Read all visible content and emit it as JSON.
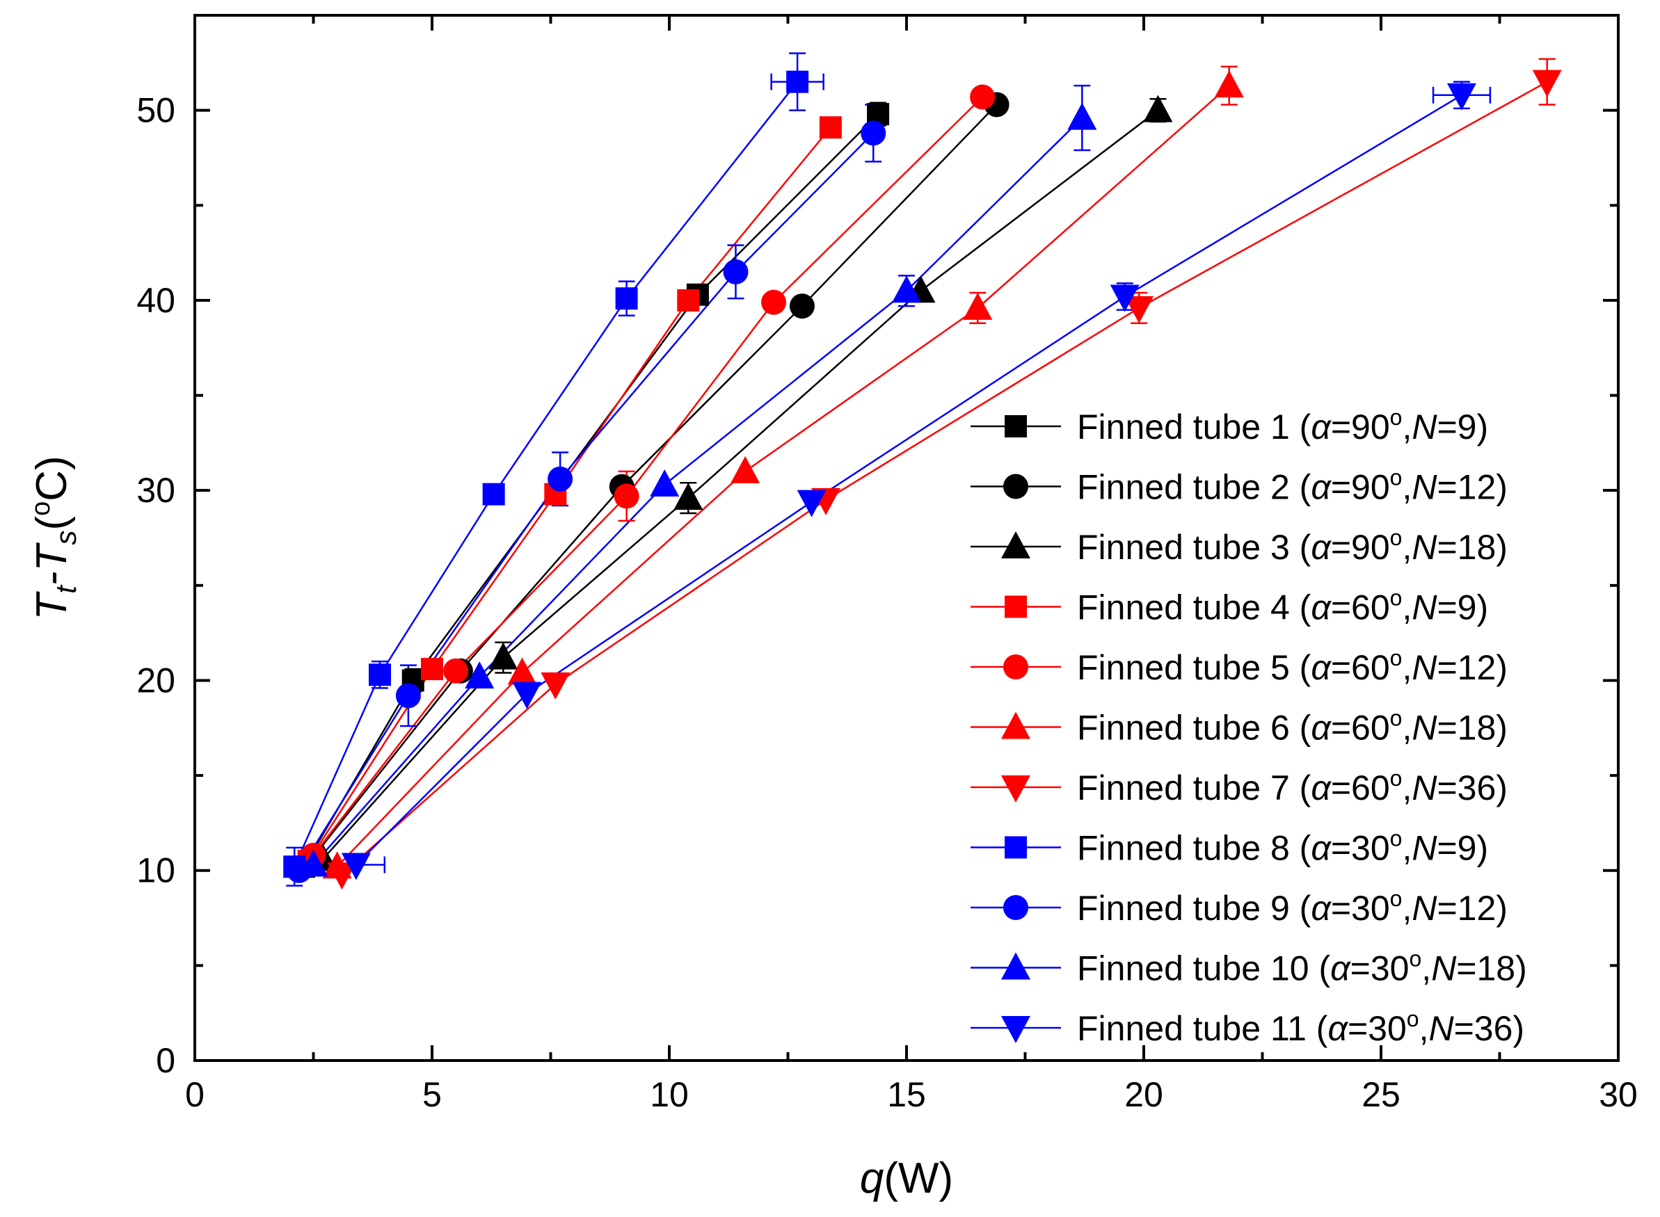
{
  "chart_data": {
    "type": "line",
    "xlabel": {
      "italic": "q",
      "rest": "(W)"
    },
    "ylabel": {
      "main": "T",
      "sub1": "t",
      "dash": "-T",
      "sub2": "s",
      "open": "(",
      "deg": "o",
      "close": "C)"
    },
    "xlim": [
      0,
      30
    ],
    "ylim": [
      0,
      55
    ],
    "xticks": [
      "0",
      "5",
      "10",
      "15",
      "20",
      "25",
      "30"
    ],
    "yticks": [
      "0",
      "10",
      "20",
      "30",
      "40",
      "50"
    ],
    "legend_position": "right",
    "series": [
      {
        "name": "Finned tube 1",
        "label": {
          "prefix": "Finned tube 1 (",
          "alpha_sym": "α",
          "alpha_val": "=90",
          "deg": "o",
          "sep": ",",
          "n_sym": "N",
          "n_val": "=9)"
        },
        "color": "#000000",
        "marker": "square",
        "x": [
          2.3,
          4.6,
          10.6,
          14.4
        ],
        "y": [
          10.2,
          20.0,
          40.3,
          49.8
        ]
      },
      {
        "name": "Finned tube 2",
        "label": {
          "prefix": "Finned tube 2 (",
          "alpha_sym": "α",
          "alpha_val": "=90",
          "deg": "o",
          "sep": ",",
          "n_sym": "N",
          "n_val": "=12)"
        },
        "color": "#000000",
        "marker": "circle",
        "x": [
          2.4,
          5.6,
          9.0,
          12.8,
          16.9
        ],
        "y": [
          10.4,
          20.5,
          30.2,
          39.7,
          50.3
        ]
      },
      {
        "name": "Finned tube 3",
        "label": {
          "prefix": "Finned tube 3 (",
          "alpha_sym": "α",
          "alpha_val": "=90",
          "deg": "o",
          "sep": ",",
          "n_sym": "N",
          "n_val": "=18)"
        },
        "color": "#000000",
        "marker": "triangle-up",
        "x": [
          2.7,
          6.5,
          10.4,
          15.3,
          20.3
        ],
        "y": [
          10.6,
          21.2,
          29.6,
          40.5,
          50.0
        ]
      },
      {
        "name": "Finned tube 4",
        "label": {
          "prefix": "Finned tube 4 (",
          "alpha_sym": "α",
          "alpha_val": "=60",
          "deg": "o",
          "sep": ",",
          "n_sym": "N",
          "n_val": "=9)"
        },
        "color": "#ff0000",
        "marker": "square",
        "x": [
          2.4,
          5.0,
          7.6,
          10.4,
          13.4
        ],
        "y": [
          10.5,
          20.6,
          29.8,
          40.0,
          49.1
        ]
      },
      {
        "name": "Finned tube 5",
        "label": {
          "prefix": "Finned tube 5 (",
          "alpha_sym": "α",
          "alpha_val": "=60",
          "deg": "o",
          "sep": ",",
          "n_sym": "N",
          "n_val": "=12)"
        },
        "color": "#ff0000",
        "marker": "circle",
        "x": [
          2.5,
          5.5,
          9.1,
          12.2,
          16.6
        ],
        "y": [
          10.8,
          20.5,
          29.7,
          39.9,
          50.7
        ]
      },
      {
        "name": "Finned tube 6",
        "label": {
          "prefix": "Finned tube 6 (",
          "alpha_sym": "α",
          "alpha_val": "=60",
          "deg": "o",
          "sep": ",",
          "n_sym": "N",
          "n_val": "=18)"
        },
        "color": "#ff0000",
        "marker": "triangle-up",
        "x": [
          3.0,
          6.9,
          11.6,
          16.5,
          21.8
        ],
        "y": [
          10.2,
          20.4,
          31.0,
          39.6,
          51.3
        ]
      },
      {
        "name": "Finned tube 7",
        "label": {
          "prefix": "Finned tube 7 (",
          "alpha_sym": "α",
          "alpha_val": "=60",
          "deg": "o",
          "sep": ",",
          "n_sym": "N",
          "n_val": "=36)"
        },
        "color": "#ff0000",
        "marker": "triangle-down",
        "x": [
          3.1,
          7.6,
          13.3,
          19.9,
          28.5
        ],
        "y": [
          9.8,
          19.8,
          29.5,
          39.6,
          51.5
        ]
      },
      {
        "name": "Finned tube 8",
        "label": {
          "prefix": "Finned tube 8 (",
          "alpha_sym": "α",
          "alpha_val": "=30",
          "deg": "o",
          "sep": ",",
          "n_sym": "N",
          "n_val": "=9)"
        },
        "color": "#0000ff",
        "marker": "square",
        "x": [
          2.1,
          3.9,
          6.3,
          9.1,
          12.7
        ],
        "y": [
          10.2,
          20.3,
          29.8,
          40.1,
          51.5
        ]
      },
      {
        "name": "Finned tube 9",
        "label": {
          "prefix": "Finned tube 9 (",
          "alpha_sym": "α",
          "alpha_val": "=30",
          "deg": "o",
          "sep": ",",
          "n_sym": "N",
          "n_val": "=12)"
        },
        "color": "#0000ff",
        "marker": "circle",
        "x": [
          2.2,
          4.5,
          7.7,
          11.4,
          14.3
        ],
        "y": [
          10.0,
          19.2,
          30.6,
          41.5,
          48.8
        ]
      },
      {
        "name": "Finned tube 10",
        "label": {
          "prefix": "Finned tube 10 (",
          "alpha_sym": "α",
          "alpha_val": "=30",
          "deg": "o",
          "sep": ",",
          "n_sym": "N",
          "n_val": "=18)"
        },
        "color": "#0000ff",
        "marker": "triangle-up",
        "x": [
          2.5,
          6.0,
          9.9,
          15.0,
          18.7
        ],
        "y": [
          10.3,
          20.2,
          30.3,
          40.5,
          49.6
        ]
      },
      {
        "name": "Finned tube 11",
        "label": {
          "prefix": "Finned tube 11 (",
          "alpha_sym": "α",
          "alpha_val": "=30",
          "deg": "o",
          "sep": ",",
          "n_sym": "N",
          "n_val": "=36)"
        },
        "color": "#0000ff",
        "marker": "triangle-down",
        "x": [
          3.4,
          7.0,
          13.0,
          19.6,
          26.7
        ],
        "y": [
          10.3,
          19.3,
          29.4,
          40.2,
          50.8
        ]
      }
    ],
    "error_bars": [
      {
        "series": "Finned tube 8",
        "x": 12.7,
        "y": 51.5,
        "xerr": 0.55,
        "yerr": 1.5
      },
      {
        "series": "Finned tube 8",
        "x": 9.1,
        "y": 40.1,
        "xerr": 0,
        "yerr": 0.9
      },
      {
        "series": "Finned tube 8",
        "x": 3.9,
        "y": 20.3,
        "xerr": 0,
        "yerr": 0.7
      },
      {
        "series": "Finned tube 8",
        "x": 2.1,
        "y": 10.2,
        "xerr": 0,
        "yerr": 1.0
      },
      {
        "series": "Finned tube 9",
        "x": 14.3,
        "y": 48.8,
        "xerr": 0,
        "yerr": 1.5
      },
      {
        "series": "Finned tube 9",
        "x": 11.4,
        "y": 41.5,
        "xerr": 0,
        "yerr": 1.4
      },
      {
        "series": "Finned tube 9",
        "x": 7.7,
        "y": 30.6,
        "xerr": 0,
        "yerr": 1.4
      },
      {
        "series": "Finned tube 9",
        "x": 4.5,
        "y": 19.2,
        "xerr": 0,
        "yerr": 1.6
      },
      {
        "series": "Finned tube 10",
        "x": 18.7,
        "y": 49.6,
        "xerr": 0,
        "yerr": 1.7
      },
      {
        "series": "Finned tube 10",
        "x": 15.0,
        "y": 40.5,
        "xerr": 0,
        "yerr": 0.8
      },
      {
        "series": "Finned tube 11",
        "x": 26.7,
        "y": 50.8,
        "xerr": 0.6,
        "yerr": 0.7
      },
      {
        "series": "Finned tube 11",
        "x": 19.6,
        "y": 40.2,
        "xerr": 0,
        "yerr": 0.7
      },
      {
        "series": "Finned tube 11",
        "x": 3.4,
        "y": 10.3,
        "xerr": 0.6,
        "yerr": 0
      },
      {
        "series": "Finned tube 7",
        "x": 28.5,
        "y": 51.5,
        "xerr": 0,
        "yerr": 1.2
      },
      {
        "series": "Finned tube 7",
        "x": 19.9,
        "y": 39.6,
        "xerr": 0,
        "yerr": 0.8
      },
      {
        "series": "Finned tube 6",
        "x": 21.8,
        "y": 51.3,
        "xerr": 0,
        "yerr": 1.0
      },
      {
        "series": "Finned tube 6",
        "x": 16.5,
        "y": 39.6,
        "xerr": 0,
        "yerr": 0.8
      },
      {
        "series": "Finned tube 5",
        "x": 9.1,
        "y": 29.7,
        "xerr": 0,
        "yerr": 1.3
      },
      {
        "series": "Finned tube 3",
        "x": 20.3,
        "y": 50.0,
        "xerr": 0,
        "yerr": 0.6
      },
      {
        "series": "Finned tube 3",
        "x": 10.4,
        "y": 29.6,
        "xerr": 0,
        "yerr": 0.8
      },
      {
        "series": "Finned tube 3",
        "x": 6.5,
        "y": 21.2,
        "xerr": 0,
        "yerr": 0.8
      },
      {
        "series": "Finned tube 1",
        "x": 14.4,
        "y": 49.8,
        "xerr": 0,
        "yerr": 0.6
      },
      {
        "series": "Finned tube 1",
        "x": 4.6,
        "y": 20.0,
        "xerr": 0,
        "yerr": 0.6
      }
    ]
  }
}
